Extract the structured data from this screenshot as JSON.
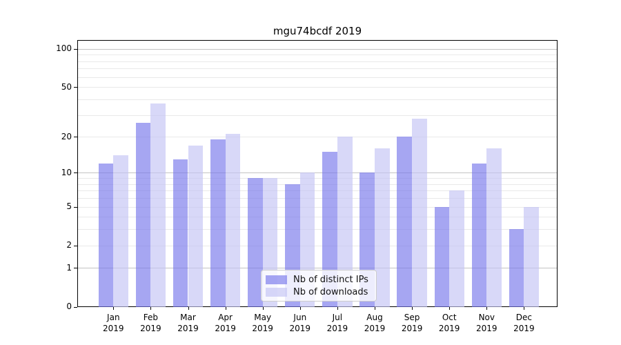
{
  "title": "mgu74bcdf 2019",
  "chart_data": {
    "type": "bar",
    "title": "mgu74bcdf 2019",
    "months": [
      "Jan",
      "Feb",
      "Mar",
      "Apr",
      "May",
      "Jun",
      "Jul",
      "Aug",
      "Sep",
      "Oct",
      "Nov",
      "Dec"
    ],
    "year_label": "2019",
    "categories": [
      "Jan 2019",
      "Feb 2019",
      "Mar 2019",
      "Apr 2019",
      "May 2019",
      "Jun 2019",
      "Jul 2019",
      "Aug 2019",
      "Sep 2019",
      "Oct 2019",
      "Nov 2019",
      "Dec 2019"
    ],
    "series": [
      {
        "name": "Nb of distinct IPs",
        "color": "#a6a6f2",
        "color_rgba": "rgba(118,118,235,0.65)",
        "values": [
          12,
          26,
          13,
          19,
          9,
          8,
          15,
          10,
          20,
          5,
          12,
          3
        ]
      },
      {
        "name": "Nb of downloads",
        "color": "#d8d8f8",
        "color_rgba": "rgba(195,195,244,0.65)",
        "values": [
          14,
          37,
          17,
          21,
          9,
          10,
          20,
          16,
          28,
          7,
          16,
          5
        ]
      }
    ],
    "xlabel": "",
    "ylabel": "",
    "y_scale": "log10(1+v)",
    "ylim": [
      0,
      116
    ],
    "y_tick_values": [
      100,
      50,
      20,
      10,
      5,
      2,
      1,
      0
    ],
    "y_tick_labels": [
      "100",
      "50",
      "20",
      "10",
      "5",
      "2",
      "1",
      "0"
    ],
    "y_major_gridlines": [
      1,
      10,
      100
    ],
    "y_minor_gridlines": [
      2,
      3,
      4,
      5,
      6,
      7,
      8,
      9,
      20,
      30,
      40,
      50,
      60,
      70,
      80,
      90
    ],
    "grid": "on",
    "legend_position": "lower center"
  },
  "colors": {
    "background": "#ffffff",
    "axis": "#000000",
    "major_grid": "#c3c3c3",
    "minor_grid": "#e9e9e9",
    "bar_dark": "#a6a6f2",
    "bar_light": "#d8d8f8",
    "legend_border": "#cccccc",
    "legend_background": "rgba(255,255,255,0.8)",
    "text": "#000000"
  }
}
